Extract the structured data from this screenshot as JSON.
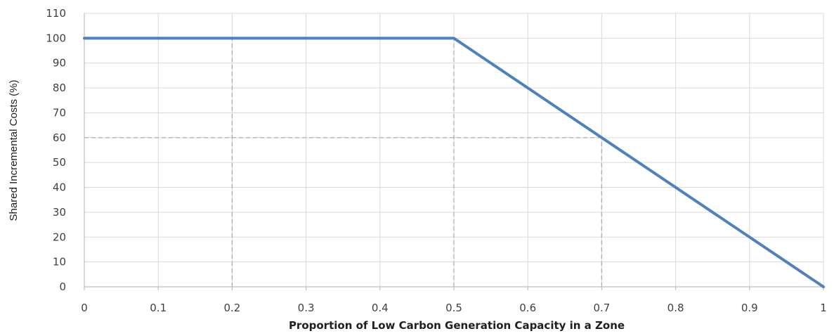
{
  "chart_data": {
    "type": "line",
    "title": "",
    "xlabel": "Proportion of Low Carbon Generation Capacity in a Zone",
    "ylabel": "Shared Incremental Costs (%)",
    "xlim": [
      0,
      1
    ],
    "ylim": [
      0,
      110
    ],
    "x_ticks": [
      "0",
      "0.1",
      "0.2",
      "0.3",
      "0.4",
      "0.5",
      "0.6",
      "0.7",
      "0.8",
      "0.9",
      "1"
    ],
    "y_ticks": [
      "0",
      "10",
      "20",
      "30",
      "40",
      "50",
      "60",
      "70",
      "80",
      "90",
      "100",
      "110"
    ],
    "grid": true,
    "series": [
      {
        "x": [
          0,
          0.5,
          1
        ],
        "y": [
          100,
          100,
          0
        ]
      }
    ],
    "reference_lines": [
      {
        "x": [
          0.2,
          0.2
        ],
        "y": [
          0,
          100
        ]
      },
      {
        "x": [
          0.5,
          0.5
        ],
        "y": [
          0,
          100
        ]
      },
      {
        "x": [
          0.7,
          0.7
        ],
        "y": [
          0,
          60
        ]
      },
      {
        "x": [
          0,
          0.7
        ],
        "y": [
          60,
          60
        ]
      }
    ],
    "colors": {
      "series": "#4f81bd",
      "grid": "#d9d9d9",
      "reference": "#a6a6a6"
    }
  }
}
